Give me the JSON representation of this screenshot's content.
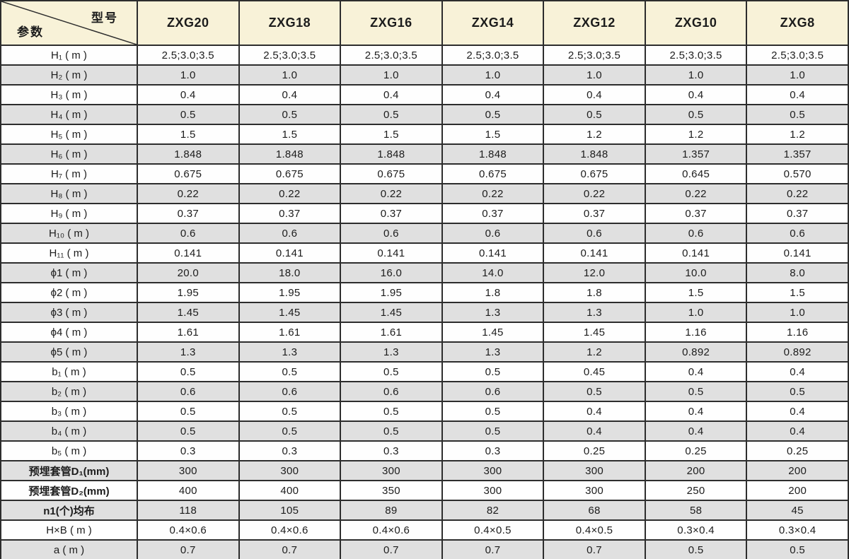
{
  "colors": {
    "header_bg": "#f8f2d8",
    "row_white": "#fefefe",
    "row_gray": "#e0e0e0",
    "border": "#2d2d2d",
    "text": "#1c1c1c"
  },
  "table": {
    "corner": {
      "model_label": "型号",
      "param_label": "参数"
    },
    "columns": [
      "ZXG20",
      "ZXG18",
      "ZXG16",
      "ZXG14",
      "ZXG12",
      "ZXG10",
      "ZXG8"
    ],
    "rows": [
      {
        "label": "H₁ ( m )",
        "values": [
          "2.5;3.0;3.5",
          "2.5;3.0;3.5",
          "2.5;3.0;3.5",
          "2.5;3.0;3.5",
          "2.5;3.0;3.5",
          "2.5;3.0;3.5",
          "2.5;3.0;3.5"
        ]
      },
      {
        "label": "H₂ ( m )",
        "values": [
          "1.0",
          "1.0",
          "1.0",
          "1.0",
          "1.0",
          "1.0",
          "1.0"
        ]
      },
      {
        "label": "H₃ ( m )",
        "values": [
          "0.4",
          "0.4",
          "0.4",
          "0.4",
          "0.4",
          "0.4",
          "0.4"
        ]
      },
      {
        "label": "H₄ ( m )",
        "values": [
          "0.5",
          "0.5",
          "0.5",
          "0.5",
          "0.5",
          "0.5",
          "0.5"
        ]
      },
      {
        "label": "H₅ ( m )",
        "values": [
          "1.5",
          "1.5",
          "1.5",
          "1.5",
          "1.2",
          "1.2",
          "1.2"
        ]
      },
      {
        "label": "H₆ ( m )",
        "values": [
          "1.848",
          "1.848",
          "1.848",
          "1.848",
          "1.848",
          "1.357",
          "1.357"
        ]
      },
      {
        "label": "H₇ ( m )",
        "values": [
          "0.675",
          "0.675",
          "0.675",
          "0.675",
          "0.675",
          "0.645",
          "0.570"
        ]
      },
      {
        "label": "H₈ ( m )",
        "values": [
          "0.22",
          "0.22",
          "0.22",
          "0.22",
          "0.22",
          "0.22",
          "0.22"
        ]
      },
      {
        "label": "H₉ ( m )",
        "values": [
          "0.37",
          "0.37",
          "0.37",
          "0.37",
          "0.37",
          "0.37",
          "0.37"
        ]
      },
      {
        "label": "H₁₀ ( m )",
        "values": [
          "0.6",
          "0.6",
          "0.6",
          "0.6",
          "0.6",
          "0.6",
          "0.6"
        ]
      },
      {
        "label": "H₁₁ ( m )",
        "values": [
          "0.141",
          "0.141",
          "0.141",
          "0.141",
          "0.141",
          "0.141",
          "0.141"
        ]
      },
      {
        "label": "ϕ1 ( m )",
        "values": [
          "20.0",
          "18.0",
          "16.0",
          "14.0",
          "12.0",
          "10.0",
          "8.0"
        ]
      },
      {
        "label": "ϕ2 ( m )",
        "values": [
          "1.95",
          "1.95",
          "1.95",
          "1.8",
          "1.8",
          "1.5",
          "1.5"
        ]
      },
      {
        "label": "ϕ3 ( m )",
        "values": [
          "1.45",
          "1.45",
          "1.45",
          "1.3",
          "1.3",
          "1.0",
          "1.0"
        ]
      },
      {
        "label": "ϕ4 ( m )",
        "values": [
          "1.61",
          "1.61",
          "1.61",
          "1.45",
          "1.45",
          "1.16",
          "1.16"
        ]
      },
      {
        "label": "ϕ5 ( m )",
        "values": [
          "1.3",
          "1.3",
          "1.3",
          "1.3",
          "1.2",
          "0.892",
          "0.892"
        ]
      },
      {
        "label": "b₁ ( m )",
        "values": [
          "0.5",
          "0.5",
          "0.5",
          "0.5",
          "0.45",
          "0.4",
          "0.4"
        ]
      },
      {
        "label": "b₂ ( m )",
        "values": [
          "0.6",
          "0.6",
          "0.6",
          "0.6",
          "0.5",
          "0.5",
          "0.5"
        ]
      },
      {
        "label": "b₃ ( m )",
        "values": [
          "0.5",
          "0.5",
          "0.5",
          "0.5",
          "0.4",
          "0.4",
          "0.4"
        ]
      },
      {
        "label": "b₄ ( m )",
        "values": [
          "0.5",
          "0.5",
          "0.5",
          "0.5",
          "0.4",
          "0.4",
          "0.4"
        ]
      },
      {
        "label": "b₅ ( m )",
        "values": [
          "0.3",
          "0.3",
          "0.3",
          "0.3",
          "0.25",
          "0.25",
          "0.25"
        ]
      },
      {
        "label": "预埋套管D₁(mm)",
        "zh": true,
        "values": [
          "300",
          "300",
          "300",
          "300",
          "300",
          "200",
          "200"
        ]
      },
      {
        "label": "预埋套管D₂(mm)",
        "zh": true,
        "values": [
          "400",
          "400",
          "350",
          "300",
          "300",
          "250",
          "200"
        ]
      },
      {
        "label": "n1(个)均布",
        "zh": true,
        "values": [
          "118",
          "105",
          "89",
          "82",
          "68",
          "58",
          "45"
        ]
      },
      {
        "label": "H×B ( m )",
        "values": [
          "0.4×0.6",
          "0.4×0.6",
          "0.4×0.6",
          "0.4×0.5",
          "0.4×0.5",
          "0.3×0.4",
          "0.3×0.4"
        ]
      },
      {
        "label": "a ( m )",
        "values": [
          "0.7",
          "0.7",
          "0.7",
          "0.7",
          "0.7",
          "0.5",
          "0.5"
        ]
      }
    ]
  }
}
